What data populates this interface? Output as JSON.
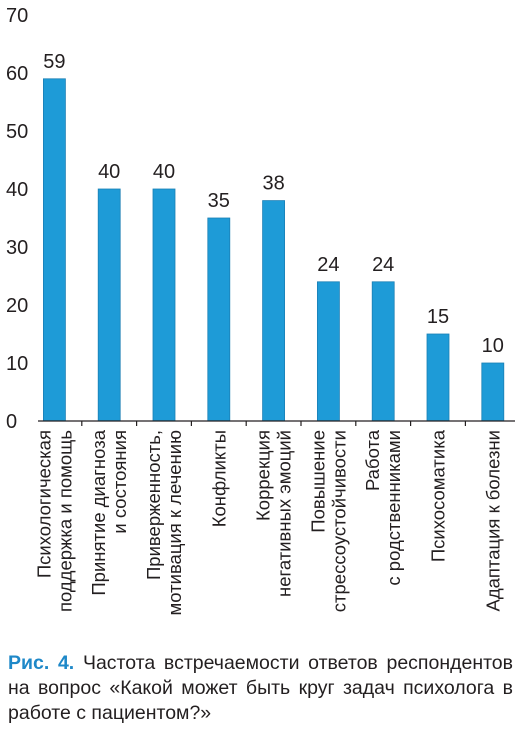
{
  "chart_data": {
    "type": "bar",
    "categories": [
      "Психологическая\nподдержка и помощь",
      "Принятие диагноза\nи состояния",
      "Приверженность,\nмотивация к лечению",
      "Конфликты",
      "Коррекция\nнегативных эмоций",
      "Повышение\nстрессоустойчивости",
      "Работа\nс родственниками",
      "Психосоматика",
      "Адаптация к болезни"
    ],
    "values": [
      59,
      40,
      40,
      35,
      38,
      24,
      24,
      15,
      10
    ],
    "ylim": [
      0,
      70
    ],
    "yticks": [
      0,
      10,
      20,
      30,
      40,
      50,
      60,
      70
    ],
    "grid": false,
    "bar_color": "#1e9bd7"
  },
  "caption": {
    "label": "Рис. 4.",
    "text": "Частота встречаемости ответов респондентов на вопрос «Какой может быть круг задач психолога в работе с пациентом?»"
  },
  "colors": {
    "accent": "#1e88c8",
    "text": "#231f20",
    "axis": "#231f20"
  }
}
